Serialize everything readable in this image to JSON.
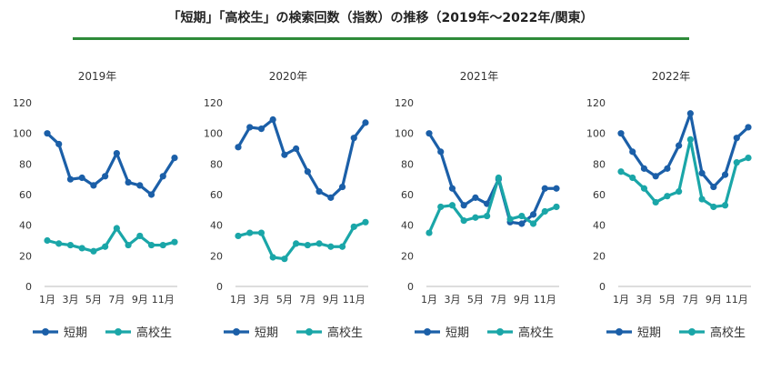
{
  "title": "「短期」「高校生」の検索回数（指数）の推移（2019年～2022年/関東）",
  "colors": {
    "rule": "#2e8b3a",
    "short_term": "#1b5fa8",
    "high_school": "#1aa6a8",
    "axis": "#bbbbbb",
    "text": "#333333"
  },
  "chart_data": [
    {
      "type": "line",
      "title": "2019年",
      "x": [
        1,
        2,
        3,
        4,
        5,
        6,
        7,
        8,
        9,
        10,
        11,
        12
      ],
      "tick_labels": [
        "1月",
        "3月",
        "5月",
        "7月",
        "9月",
        "11月"
      ],
      "ylim": [
        0,
        120
      ],
      "yticks": [
        0,
        20,
        40,
        60,
        80,
        100,
        120
      ],
      "grid": false,
      "legend_position": "bottom",
      "series": [
        {
          "name": "短期",
          "color": "#1b5fa8",
          "values": [
            100,
            93,
            70,
            71,
            66,
            72,
            87,
            68,
            66,
            60,
            72,
            84
          ]
        },
        {
          "name": "高校生",
          "color": "#1aa6a8",
          "values": [
            30,
            28,
            27,
            25,
            23,
            26,
            38,
            27,
            33,
            27,
            27,
            29
          ]
        }
      ]
    },
    {
      "type": "line",
      "title": "2020年",
      "x": [
        1,
        2,
        3,
        4,
        5,
        6,
        7,
        8,
        9,
        10,
        11,
        12
      ],
      "tick_labels": [
        "1月",
        "3月",
        "5月",
        "7月",
        "9月",
        "11月"
      ],
      "ylim": [
        0,
        120
      ],
      "yticks": [
        0,
        20,
        40,
        60,
        80,
        100,
        120
      ],
      "grid": false,
      "legend_position": "bottom",
      "series": [
        {
          "name": "短期",
          "color": "#1b5fa8",
          "values": [
            91,
            104,
            103,
            109,
            86,
            90,
            75,
            62,
            58,
            65,
            97,
            107
          ]
        },
        {
          "name": "高校生",
          "color": "#1aa6a8",
          "values": [
            33,
            35,
            35,
            19,
            18,
            28,
            27,
            28,
            26,
            26,
            39,
            42
          ]
        }
      ]
    },
    {
      "type": "line",
      "title": "2021年",
      "x": [
        1,
        2,
        3,
        4,
        5,
        6,
        7,
        8,
        9,
        10,
        11,
        12
      ],
      "tick_labels": [
        "1月",
        "3月",
        "5月",
        "7月",
        "9月",
        "11月"
      ],
      "ylim": [
        0,
        120
      ],
      "yticks": [
        0,
        20,
        40,
        60,
        80,
        100,
        120
      ],
      "grid": false,
      "legend_position": "bottom",
      "series": [
        {
          "name": "短期",
          "color": "#1b5fa8",
          "values": [
            100,
            88,
            64,
            53,
            58,
            54,
            70,
            42,
            41,
            47,
            64,
            64
          ]
        },
        {
          "name": "高校生",
          "color": "#1aa6a8",
          "values": [
            35,
            52,
            53,
            43,
            45,
            46,
            71,
            44,
            46,
            41,
            49,
            52
          ]
        }
      ]
    },
    {
      "type": "line",
      "title": "2022年",
      "x": [
        1,
        2,
        3,
        4,
        5,
        6,
        7,
        8,
        9,
        10,
        11,
        12
      ],
      "tick_labels": [
        "1月",
        "3月",
        "5月",
        "7月",
        "9月",
        "11月"
      ],
      "ylim": [
        0,
        120
      ],
      "yticks": [
        0,
        20,
        40,
        60,
        80,
        100,
        120
      ],
      "grid": false,
      "legend_position": "bottom",
      "series": [
        {
          "name": "短期",
          "color": "#1b5fa8",
          "values": [
            100,
            88,
            77,
            72,
            77,
            92,
            113,
            74,
            65,
            73,
            97,
            104
          ]
        },
        {
          "name": "高校生",
          "color": "#1aa6a8",
          "values": [
            75,
            71,
            64,
            55,
            59,
            62,
            96,
            57,
            52,
            53,
            81,
            84
          ]
        }
      ]
    }
  ]
}
